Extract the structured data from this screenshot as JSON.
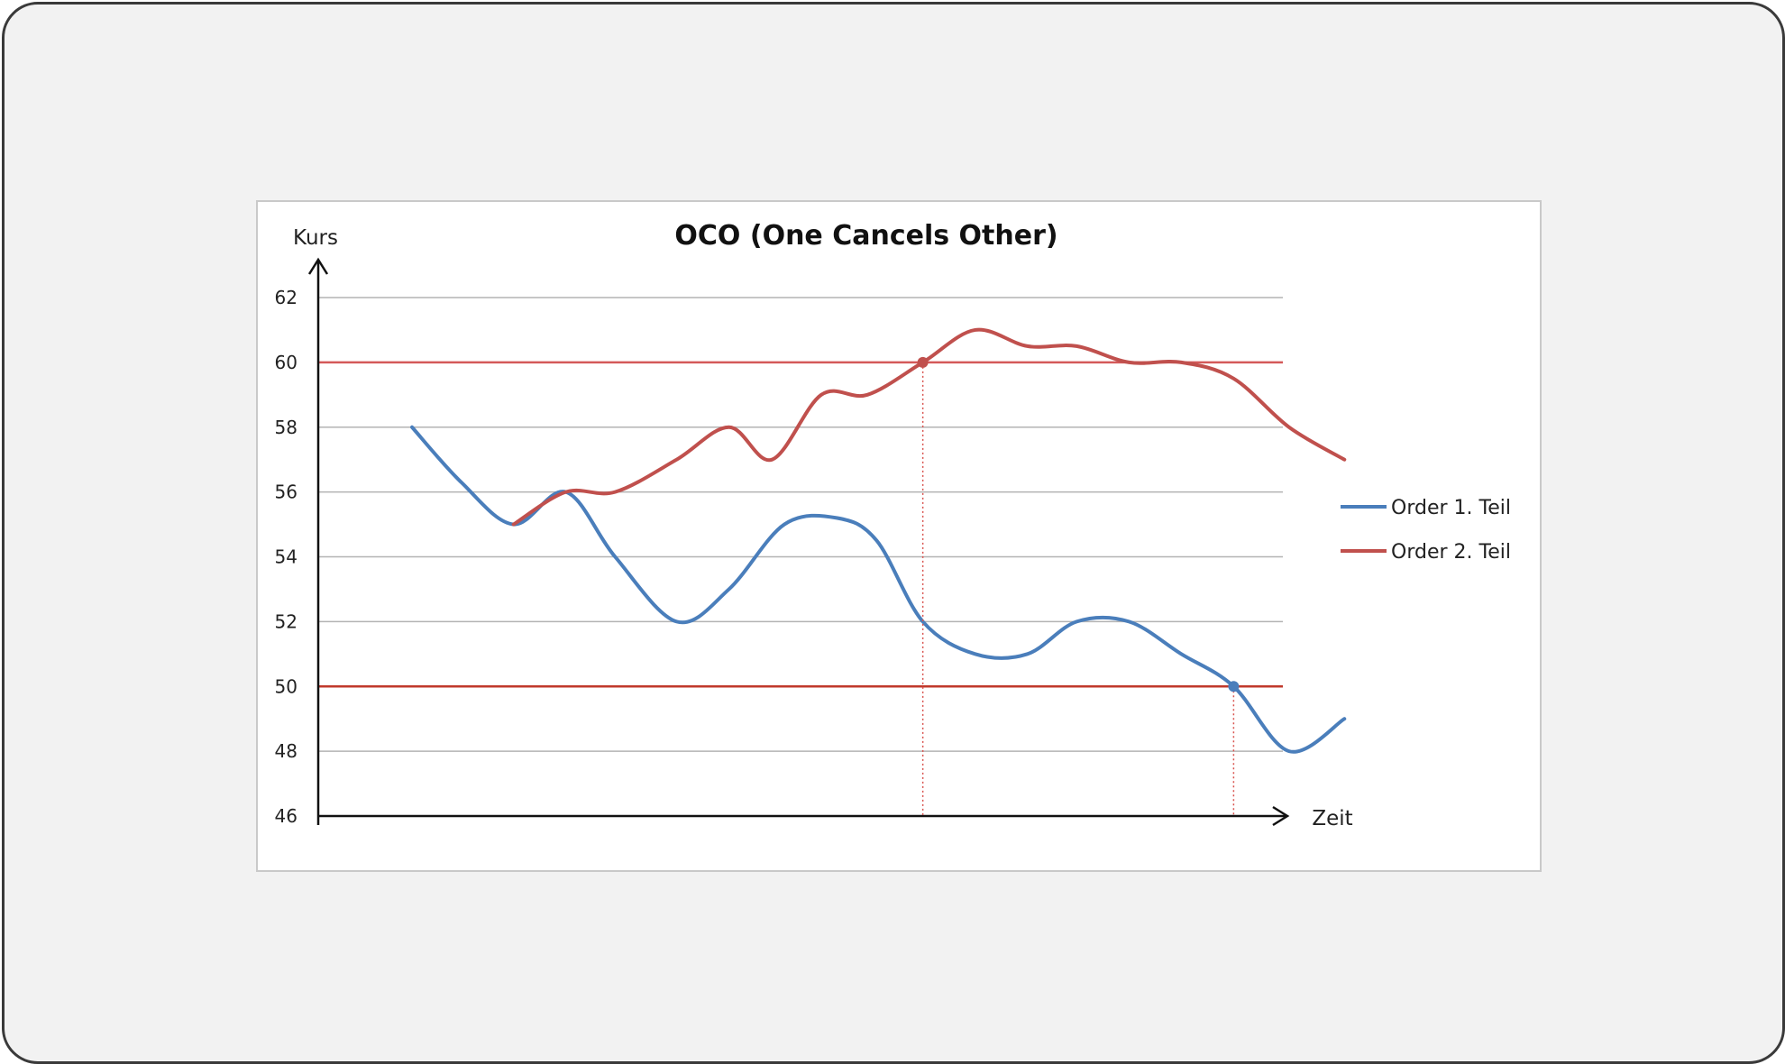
{
  "chart_data": {
    "type": "line",
    "title": "OCO (One Cancels Other)",
    "ylabel": "Kurs",
    "xlabel": "Zeit",
    "ylim": [
      46,
      62
    ],
    "yticks": [
      46,
      48,
      50,
      52,
      54,
      56,
      58,
      60,
      62
    ],
    "xlim": [
      0,
      30
    ],
    "grid": true,
    "legend_position": "right",
    "reference_lines": [
      {
        "y": 60,
        "color": "#d45a5a"
      },
      {
        "y": 50,
        "color": "#c0392b"
      }
    ],
    "trigger_markers": [
      {
        "x": 18.3,
        "y": 60,
        "series": "Order 2. Teil"
      },
      {
        "x": 28.4,
        "y": 50,
        "series": "Order 1. Teil"
      }
    ],
    "series": [
      {
        "name": "Order 1. Teil",
        "color": "#4a7ebb",
        "x": [
          1.7,
          3.3,
          5,
          6.7,
          8.3,
          10.3,
          12,
          13.8,
          15.5,
          16.8,
          18.3,
          20,
          21.7,
          23.3,
          25,
          26.7,
          28.4,
          30.2,
          32
        ],
        "y": [
          58,
          56.3,
          55,
          56,
          54,
          52,
          53,
          55,
          55.2,
          54.5,
          52,
          51,
          51,
          52,
          52,
          51,
          50,
          48,
          49
        ]
      },
      {
        "name": "Order 2. Teil",
        "color": "#c0504d",
        "x": [
          5,
          6.7,
          8.3,
          10.3,
          12,
          13.4,
          15,
          16.5,
          18.3,
          20,
          21.7,
          23.3,
          25,
          26.7,
          28.4,
          30.2,
          32
        ],
        "y": [
          55,
          56,
          56,
          57,
          58,
          57,
          59,
          59,
          60,
          61,
          60.5,
          60.5,
          60,
          60,
          59.5,
          58,
          57
        ]
      }
    ],
    "legend": [
      "Order 1. Teil",
      "Order 2. Teil"
    ]
  }
}
